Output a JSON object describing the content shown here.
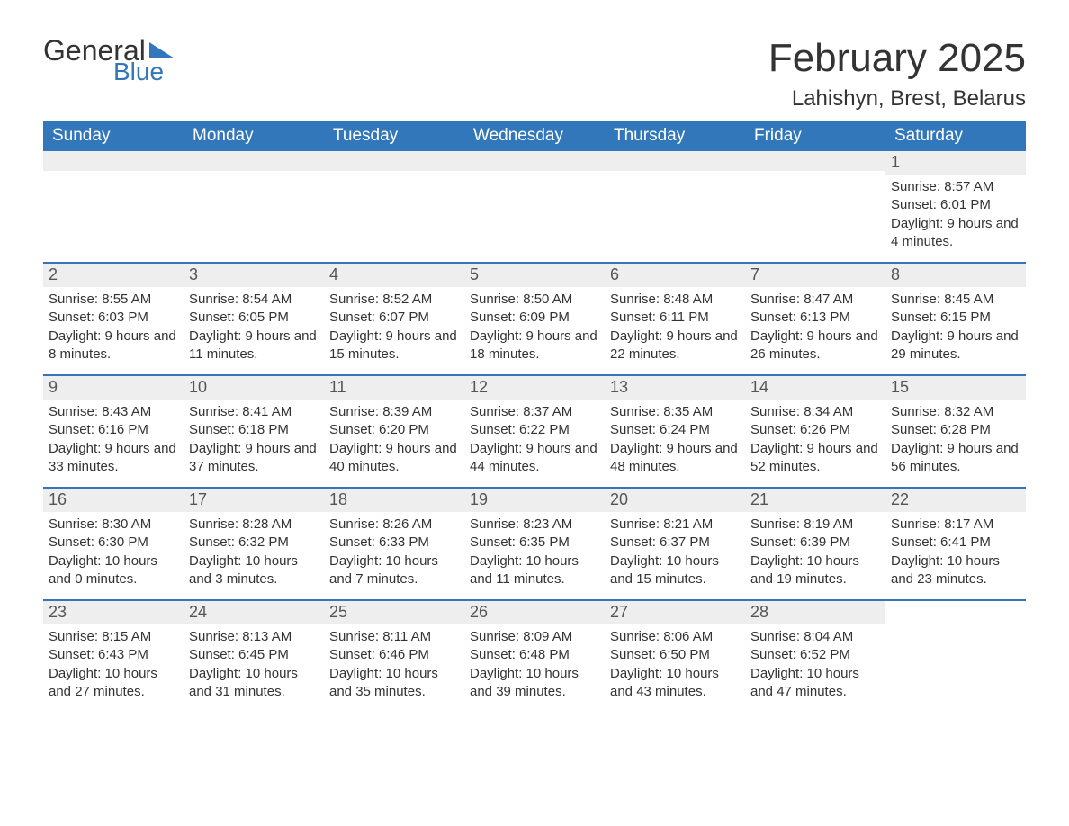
{
  "logo": {
    "word1": "General",
    "word2": "Blue"
  },
  "title": "February 2025",
  "location": "Lahishyn, Brest, Belarus",
  "colors": {
    "header_bg": "#3377bb",
    "header_text": "#ffffff",
    "daynum_bg": "#eeeeee",
    "row_divider": "#3377bb",
    "text": "#333333",
    "background": "#ffffff"
  },
  "weekdays": [
    "Sunday",
    "Monday",
    "Tuesday",
    "Wednesday",
    "Thursday",
    "Friday",
    "Saturday"
  ],
  "grid": [
    [
      {
        "day": "",
        "sunrise": "",
        "sunset": "",
        "daylight": ""
      },
      {
        "day": "",
        "sunrise": "",
        "sunset": "",
        "daylight": ""
      },
      {
        "day": "",
        "sunrise": "",
        "sunset": "",
        "daylight": ""
      },
      {
        "day": "",
        "sunrise": "",
        "sunset": "",
        "daylight": ""
      },
      {
        "day": "",
        "sunrise": "",
        "sunset": "",
        "daylight": ""
      },
      {
        "day": "",
        "sunrise": "",
        "sunset": "",
        "daylight": ""
      },
      {
        "day": "1",
        "sunrise": "Sunrise: 8:57 AM",
        "sunset": "Sunset: 6:01 PM",
        "daylight": "Daylight: 9 hours and 4 minutes."
      }
    ],
    [
      {
        "day": "2",
        "sunrise": "Sunrise: 8:55 AM",
        "sunset": "Sunset: 6:03 PM",
        "daylight": "Daylight: 9 hours and 8 minutes."
      },
      {
        "day": "3",
        "sunrise": "Sunrise: 8:54 AM",
        "sunset": "Sunset: 6:05 PM",
        "daylight": "Daylight: 9 hours and 11 minutes."
      },
      {
        "day": "4",
        "sunrise": "Sunrise: 8:52 AM",
        "sunset": "Sunset: 6:07 PM",
        "daylight": "Daylight: 9 hours and 15 minutes."
      },
      {
        "day": "5",
        "sunrise": "Sunrise: 8:50 AM",
        "sunset": "Sunset: 6:09 PM",
        "daylight": "Daylight: 9 hours and 18 minutes."
      },
      {
        "day": "6",
        "sunrise": "Sunrise: 8:48 AM",
        "sunset": "Sunset: 6:11 PM",
        "daylight": "Daylight: 9 hours and 22 minutes."
      },
      {
        "day": "7",
        "sunrise": "Sunrise: 8:47 AM",
        "sunset": "Sunset: 6:13 PM",
        "daylight": "Daylight: 9 hours and 26 minutes."
      },
      {
        "day": "8",
        "sunrise": "Sunrise: 8:45 AM",
        "sunset": "Sunset: 6:15 PM",
        "daylight": "Daylight: 9 hours and 29 minutes."
      }
    ],
    [
      {
        "day": "9",
        "sunrise": "Sunrise: 8:43 AM",
        "sunset": "Sunset: 6:16 PM",
        "daylight": "Daylight: 9 hours and 33 minutes."
      },
      {
        "day": "10",
        "sunrise": "Sunrise: 8:41 AM",
        "sunset": "Sunset: 6:18 PM",
        "daylight": "Daylight: 9 hours and 37 minutes."
      },
      {
        "day": "11",
        "sunrise": "Sunrise: 8:39 AM",
        "sunset": "Sunset: 6:20 PM",
        "daylight": "Daylight: 9 hours and 40 minutes."
      },
      {
        "day": "12",
        "sunrise": "Sunrise: 8:37 AM",
        "sunset": "Sunset: 6:22 PM",
        "daylight": "Daylight: 9 hours and 44 minutes."
      },
      {
        "day": "13",
        "sunrise": "Sunrise: 8:35 AM",
        "sunset": "Sunset: 6:24 PM",
        "daylight": "Daylight: 9 hours and 48 minutes."
      },
      {
        "day": "14",
        "sunrise": "Sunrise: 8:34 AM",
        "sunset": "Sunset: 6:26 PM",
        "daylight": "Daylight: 9 hours and 52 minutes."
      },
      {
        "day": "15",
        "sunrise": "Sunrise: 8:32 AM",
        "sunset": "Sunset: 6:28 PM",
        "daylight": "Daylight: 9 hours and 56 minutes."
      }
    ],
    [
      {
        "day": "16",
        "sunrise": "Sunrise: 8:30 AM",
        "sunset": "Sunset: 6:30 PM",
        "daylight": "Daylight: 10 hours and 0 minutes."
      },
      {
        "day": "17",
        "sunrise": "Sunrise: 8:28 AM",
        "sunset": "Sunset: 6:32 PM",
        "daylight": "Daylight: 10 hours and 3 minutes."
      },
      {
        "day": "18",
        "sunrise": "Sunrise: 8:26 AM",
        "sunset": "Sunset: 6:33 PM",
        "daylight": "Daylight: 10 hours and 7 minutes."
      },
      {
        "day": "19",
        "sunrise": "Sunrise: 8:23 AM",
        "sunset": "Sunset: 6:35 PM",
        "daylight": "Daylight: 10 hours and 11 minutes."
      },
      {
        "day": "20",
        "sunrise": "Sunrise: 8:21 AM",
        "sunset": "Sunset: 6:37 PM",
        "daylight": "Daylight: 10 hours and 15 minutes."
      },
      {
        "day": "21",
        "sunrise": "Sunrise: 8:19 AM",
        "sunset": "Sunset: 6:39 PM",
        "daylight": "Daylight: 10 hours and 19 minutes."
      },
      {
        "day": "22",
        "sunrise": "Sunrise: 8:17 AM",
        "sunset": "Sunset: 6:41 PM",
        "daylight": "Daylight: 10 hours and 23 minutes."
      }
    ],
    [
      {
        "day": "23",
        "sunrise": "Sunrise: 8:15 AM",
        "sunset": "Sunset: 6:43 PM",
        "daylight": "Daylight: 10 hours and 27 minutes."
      },
      {
        "day": "24",
        "sunrise": "Sunrise: 8:13 AM",
        "sunset": "Sunset: 6:45 PM",
        "daylight": "Daylight: 10 hours and 31 minutes."
      },
      {
        "day": "25",
        "sunrise": "Sunrise: 8:11 AM",
        "sunset": "Sunset: 6:46 PM",
        "daylight": "Daylight: 10 hours and 35 minutes."
      },
      {
        "day": "26",
        "sunrise": "Sunrise: 8:09 AM",
        "sunset": "Sunset: 6:48 PM",
        "daylight": "Daylight: 10 hours and 39 minutes."
      },
      {
        "day": "27",
        "sunrise": "Sunrise: 8:06 AM",
        "sunset": "Sunset: 6:50 PM",
        "daylight": "Daylight: 10 hours and 43 minutes."
      },
      {
        "day": "28",
        "sunrise": "Sunrise: 8:04 AM",
        "sunset": "Sunset: 6:52 PM",
        "daylight": "Daylight: 10 hours and 47 minutes."
      },
      {
        "day": "",
        "sunrise": "",
        "sunset": "",
        "daylight": ""
      }
    ]
  ]
}
